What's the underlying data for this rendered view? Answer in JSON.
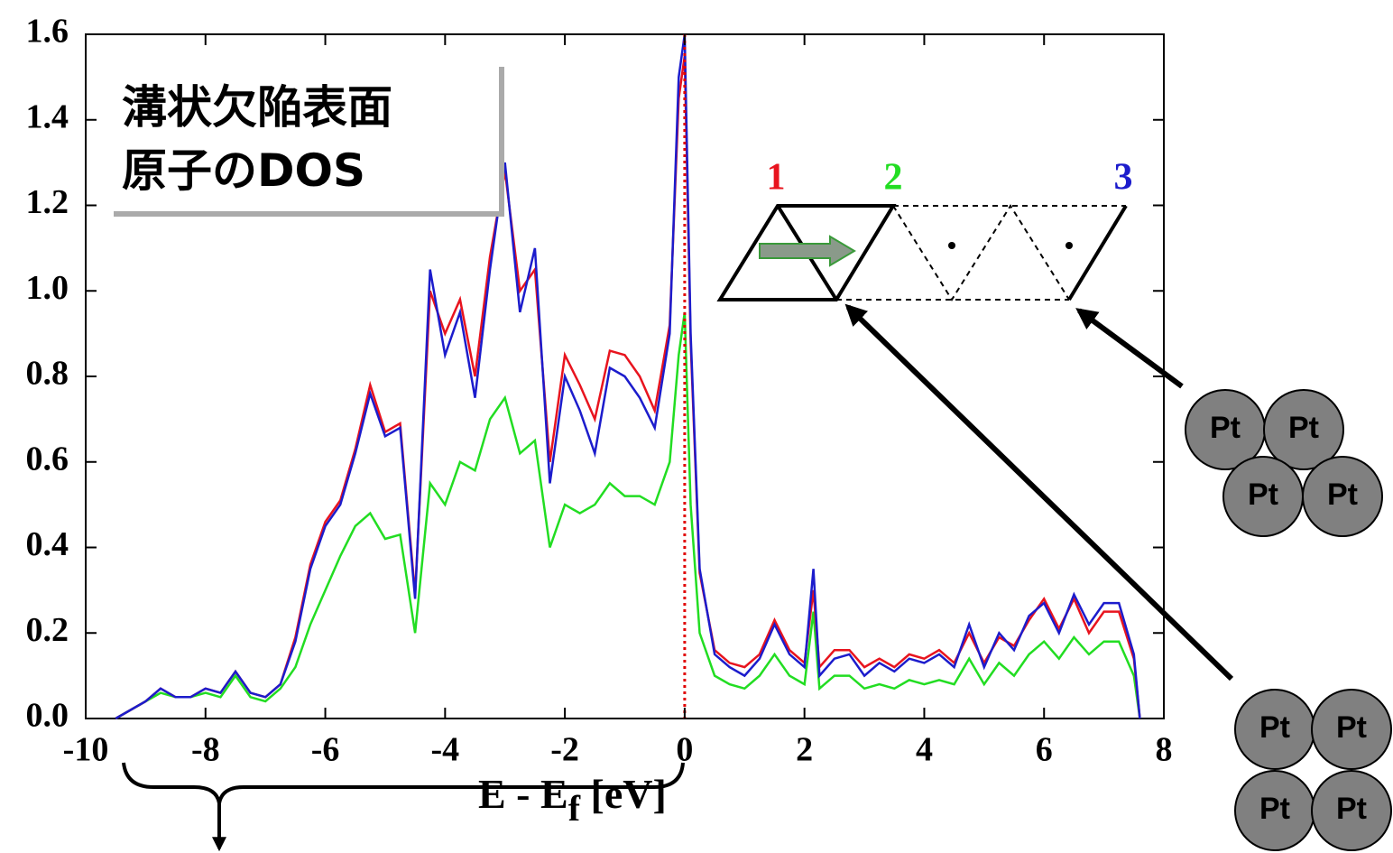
{
  "chart_data": {
    "type": "line",
    "x": [
      -9.5,
      -9.25,
      -9,
      -8.75,
      -8.5,
      -8.25,
      -8,
      -7.75,
      -7.5,
      -7.25,
      -7,
      -6.75,
      -6.5,
      -6.25,
      -6,
      -5.75,
      -5.5,
      -5.25,
      -5,
      -4.75,
      -4.5,
      -4.25,
      -4,
      -3.75,
      -3.5,
      -3.25,
      -3,
      -2.75,
      -2.5,
      -2.25,
      -2,
      -1.75,
      -1.5,
      -1.25,
      -1,
      -0.75,
      -0.5,
      -0.25,
      -0.1,
      0,
      0.1,
      0.25,
      0.5,
      0.75,
      1,
      1.25,
      1.5,
      1.75,
      2,
      2.15,
      2.25,
      2.5,
      2.75,
      3,
      3.25,
      3.5,
      3.75,
      4,
      4.25,
      4.5,
      4.75,
      5,
      5.25,
      5.5,
      5.75,
      6,
      6.25,
      6.5,
      6.75,
      7,
      7.25,
      7.5,
      7.6
    ],
    "series": [
      {
        "name": "1",
        "color": "#e8141e",
        "values": [
          0,
          0.02,
          0.04,
          0.07,
          0.05,
          0.05,
          0.07,
          0.06,
          0.11,
          0.06,
          0.05,
          0.08,
          0.19,
          0.36,
          0.46,
          0.51,
          0.63,
          0.78,
          0.67,
          0.69,
          0.29,
          1.0,
          0.9,
          0.98,
          0.8,
          1.08,
          1.28,
          1.0,
          1.05,
          0.6,
          0.85,
          0.78,
          0.7,
          0.86,
          0.85,
          0.8,
          0.72,
          0.92,
          1.45,
          1.55,
          0.88,
          0.34,
          0.16,
          0.13,
          0.12,
          0.15,
          0.23,
          0.16,
          0.13,
          0.3,
          0.12,
          0.16,
          0.16,
          0.12,
          0.14,
          0.12,
          0.15,
          0.14,
          0.16,
          0.13,
          0.2,
          0.13,
          0.19,
          0.17,
          0.23,
          0.28,
          0.21,
          0.28,
          0.2,
          0.25,
          0.25,
          0.14,
          0
        ]
      },
      {
        "name": "2",
        "color": "#22dd22",
        "values": [
          0,
          0.02,
          0.04,
          0.06,
          0.05,
          0.05,
          0.06,
          0.05,
          0.1,
          0.05,
          0.04,
          0.07,
          0.12,
          0.22,
          0.3,
          0.38,
          0.45,
          0.48,
          0.42,
          0.43,
          0.2,
          0.55,
          0.5,
          0.6,
          0.58,
          0.7,
          0.75,
          0.62,
          0.65,
          0.4,
          0.5,
          0.48,
          0.5,
          0.55,
          0.52,
          0.52,
          0.5,
          0.6,
          0.85,
          0.95,
          0.5,
          0.2,
          0.1,
          0.08,
          0.07,
          0.1,
          0.15,
          0.1,
          0.08,
          0.25,
          0.07,
          0.1,
          0.1,
          0.07,
          0.08,
          0.07,
          0.09,
          0.08,
          0.09,
          0.08,
          0.14,
          0.08,
          0.13,
          0.1,
          0.15,
          0.18,
          0.14,
          0.19,
          0.15,
          0.18,
          0.18,
          0.1,
          0
        ]
      },
      {
        "name": "3",
        "color": "#1c1ccc",
        "values": [
          0,
          0.02,
          0.04,
          0.07,
          0.05,
          0.05,
          0.07,
          0.06,
          0.11,
          0.06,
          0.05,
          0.08,
          0.18,
          0.35,
          0.45,
          0.5,
          0.62,
          0.76,
          0.66,
          0.68,
          0.28,
          1.05,
          0.85,
          0.95,
          0.75,
          1.05,
          1.3,
          0.95,
          1.1,
          0.55,
          0.8,
          0.72,
          0.62,
          0.82,
          0.8,
          0.75,
          0.68,
          0.9,
          1.5,
          1.6,
          0.9,
          0.35,
          0.15,
          0.12,
          0.1,
          0.14,
          0.22,
          0.15,
          0.12,
          0.35,
          0.1,
          0.14,
          0.15,
          0.1,
          0.13,
          0.11,
          0.14,
          0.13,
          0.15,
          0.12,
          0.22,
          0.12,
          0.2,
          0.16,
          0.24,
          0.27,
          0.2,
          0.29,
          0.22,
          0.27,
          0.27,
          0.15,
          0
        ]
      }
    ],
    "xlim": [
      -10,
      8
    ],
    "ylim": [
      0,
      1.6
    ],
    "xticks": [
      -10,
      -8,
      -6,
      -4,
      -2,
      0,
      2,
      4,
      6,
      8
    ],
    "yticks": [
      {
        "value": 0,
        "label": "0.0"
      },
      0.2,
      0.4,
      0.6,
      0.8,
      {
        "value": 1,
        "label": "1.0"
      },
      1.2,
      1.4,
      1.6
    ],
    "xlabel": {
      "text": "E - E",
      "subscript": "f",
      "unit": " [eV]"
    },
    "vline": {
      "x": 0,
      "color": "#e00000"
    }
  },
  "annotations": {
    "box_lines": [
      "溝状欠陥表面",
      "原子のDOS"
    ],
    "atom_labels": [
      "Pt",
      "Pt",
      "Pt",
      "Pt",
      "Pt",
      "Pt",
      "Pt",
      "Pt"
    ]
  }
}
